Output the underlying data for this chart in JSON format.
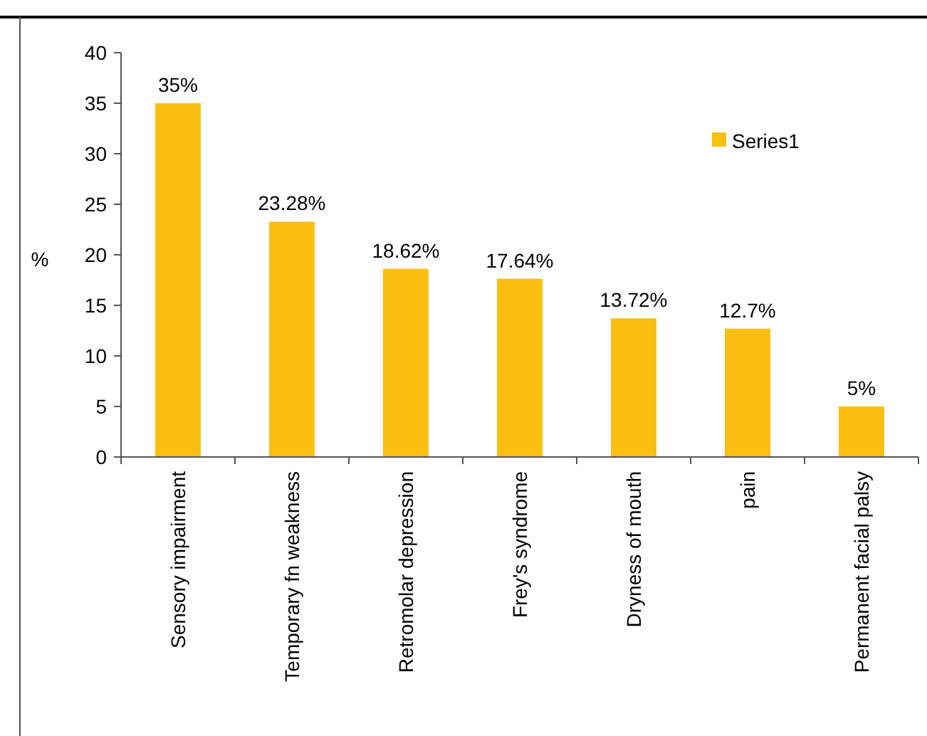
{
  "chart_data": {
    "type": "bar",
    "ylabel": "%",
    "categories": [
      "Sensory impairment",
      "Temporary fn weakness",
      "Retromolar depression",
      "Frey's syndrome",
      "Dryness of mouth",
      "pain",
      "Permanent facial palsy"
    ],
    "series": [
      {
        "name": "Series1",
        "color": "#fbbf12",
        "values": [
          35,
          23.28,
          18.62,
          17.64,
          13.72,
          12.7,
          5
        ],
        "value_labels": [
          "35%",
          "23.28%",
          "18.62%",
          "17.64%",
          "13.72%",
          "12.7%",
          "5%"
        ]
      }
    ],
    "ylim": [
      0,
      40
    ],
    "yticks": [
      0,
      5,
      10,
      15,
      20,
      25,
      30,
      35,
      40
    ],
    "grid": false,
    "legend": "top right"
  }
}
